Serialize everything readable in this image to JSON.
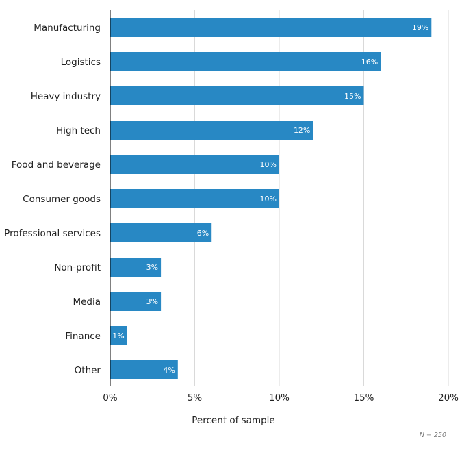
{
  "chart_data": {
    "type": "bar",
    "orientation": "horizontal",
    "categories": [
      "Manufacturing",
      "Logistics",
      "Heavy industry",
      "High tech",
      "Food and beverage",
      "Consumer goods",
      "Professional services",
      "Non-profit",
      "Media",
      "Finance",
      "Other"
    ],
    "values": [
      19,
      16,
      15,
      12,
      10,
      10,
      6,
      3,
      3,
      1,
      4
    ],
    "data_labels": [
      "19%",
      "16%",
      "15%",
      "12%",
      "10%",
      "10%",
      "6%",
      "3%",
      "3%",
      "1%",
      "4%"
    ],
    "title": "",
    "xlabel": "Percent of sample",
    "ylabel": "",
    "xlim": [
      0,
      20
    ],
    "xticks": [
      0,
      5,
      10,
      15,
      20
    ],
    "xtick_labels": [
      "0%",
      "5%",
      "10%",
      "15%",
      "20%"
    ],
    "grid": "vertical",
    "legend": "none",
    "note": "N = 250",
    "colors": {
      "bar": "#2888c4",
      "grid": "#d9d9d9",
      "axis": "#000000",
      "text": "#222222",
      "note": "#777777"
    }
  }
}
